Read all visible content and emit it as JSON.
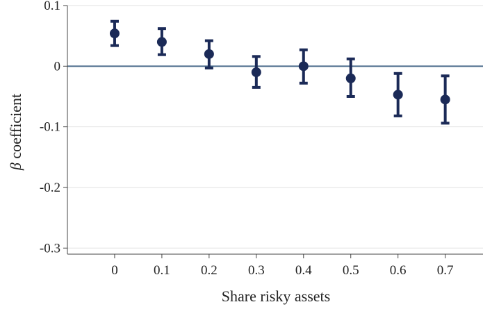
{
  "chart_data": {
    "type": "scatter",
    "subtype": "point-with-error-bars",
    "title": "",
    "xlabel": "Share risky assets",
    "ylabel_symbol": "β",
    "ylabel_text": " coefficient",
    "x": [
      0,
      0.1,
      0.2,
      0.3,
      0.4,
      0.5,
      0.6,
      0.7
    ],
    "x_tick_labels": [
      "0",
      "0.1",
      "0.2",
      "0.3",
      "0.4",
      "0.5",
      "0.6",
      "0.7"
    ],
    "y_ticks": [
      0.1,
      0,
      -0.1,
      -0.2,
      -0.3
    ],
    "y_tick_labels": [
      "0.1",
      "0",
      "-0.1",
      "-0.2",
      "-0.3"
    ],
    "xlim": [
      -0.1,
      0.78
    ],
    "ylim": [
      -0.31,
      0.1
    ],
    "series": [
      {
        "values": [
          0.054,
          0.04,
          0.02,
          -0.01,
          0.0,
          -0.02,
          -0.047,
          -0.055
        ],
        "ci_low": [
          0.034,
          0.019,
          -0.003,
          -0.035,
          -0.028,
          -0.05,
          -0.082,
          -0.094
        ],
        "ci_high": [
          0.074,
          0.062,
          0.042,
          0.016,
          0.027,
          0.012,
          -0.012,
          -0.016
        ]
      }
    ],
    "reference_line_y": 0,
    "grid": "horizontal",
    "colors": {
      "points": "#1b2a57",
      "reference_line": "#4a6a8a",
      "grid": "#e2e2e2",
      "axis": "#444444"
    }
  }
}
